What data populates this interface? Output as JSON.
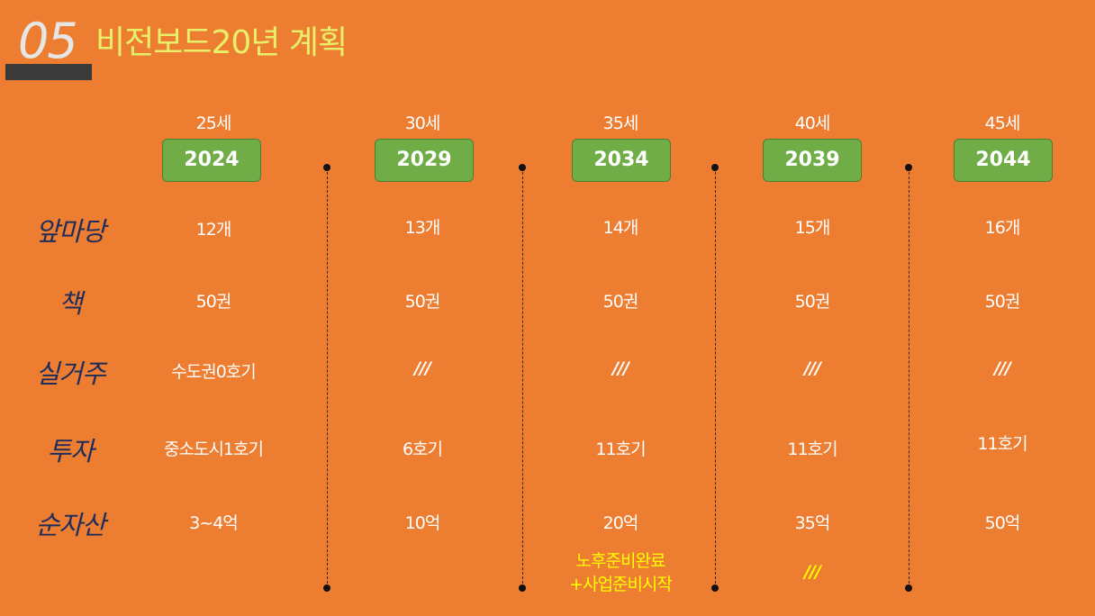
{
  "title": {
    "number": "05",
    "text": "비전보드20년 계획"
  },
  "columns": [
    {
      "age": "25세",
      "year": "2024"
    },
    {
      "age": "30세",
      "year": "2029"
    },
    {
      "age": "35세",
      "year": "2034"
    },
    {
      "age": "40세",
      "year": "2039"
    },
    {
      "age": "45세",
      "year": "2044"
    }
  ],
  "rows": [
    {
      "label": "앞마당",
      "values": [
        "12개",
        "13개",
        "14개",
        "15개",
        "16개"
      ]
    },
    {
      "label": "책",
      "values": [
        "50권",
        "50권",
        "50권",
        "50권",
        "50권"
      ]
    },
    {
      "label": "실거주",
      "values": [
        "수도권0호기",
        "///",
        "///",
        "///",
        "///"
      ]
    },
    {
      "label": "투자",
      "values": [
        "중소도시1호기",
        "6호기",
        "11호기",
        "11호기",
        "11호기"
      ]
    },
    {
      "label": "순자산",
      "values": [
        "3~4억",
        "10억",
        "20억",
        "35억",
        "50억"
      ]
    }
  ],
  "notes": {
    "col3_line1": "노후준비완료",
    "col3_line2": "+사업준비시작",
    "col4": "///"
  },
  "colors": {
    "background": "#ED7D31",
    "year_box": "#70AD47",
    "title_text": "#E8F06A",
    "label_text": "#1f2d5a",
    "note_text": "#FFFF00"
  }
}
